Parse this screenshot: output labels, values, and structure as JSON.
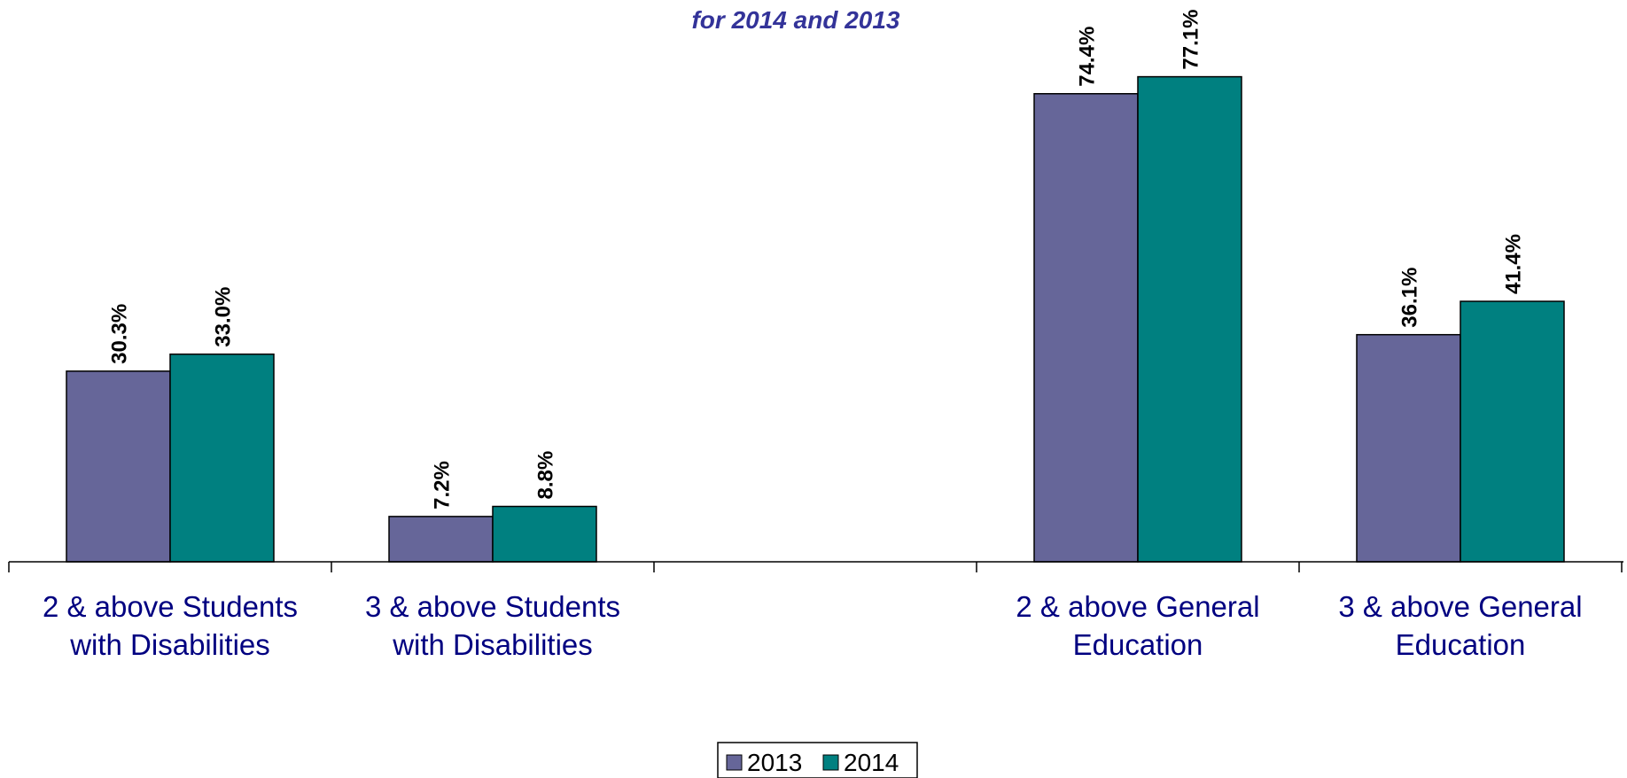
{
  "chart_data": {
    "type": "bar",
    "title": "for 2014 and 2013",
    "categories": [
      [
        "2 & above Students",
        "with Disabilities"
      ],
      [
        "3 & above Students",
        "with Disabilities"
      ],
      [
        "",
        ""
      ],
      [
        "2 & above General",
        "Education"
      ],
      [
        "3 & above General",
        "Education"
      ]
    ],
    "series": [
      {
        "name": "2013",
        "color": "#666699",
        "values": [
          30.3,
          7.2,
          null,
          74.4,
          36.1
        ],
        "labels": [
          "30.3%",
          "7.2%",
          "",
          "74.4%",
          "36.1%"
        ]
      },
      {
        "name": "2014",
        "color": "#008080",
        "values": [
          33.0,
          8.8,
          null,
          77.1,
          41.4
        ],
        "labels": [
          "33.0%",
          "8.8%",
          "",
          "77.1%",
          "41.4%"
        ]
      }
    ],
    "ylim": [
      0,
      100
    ],
    "grid": false,
    "legend_position": "bottom-center"
  }
}
